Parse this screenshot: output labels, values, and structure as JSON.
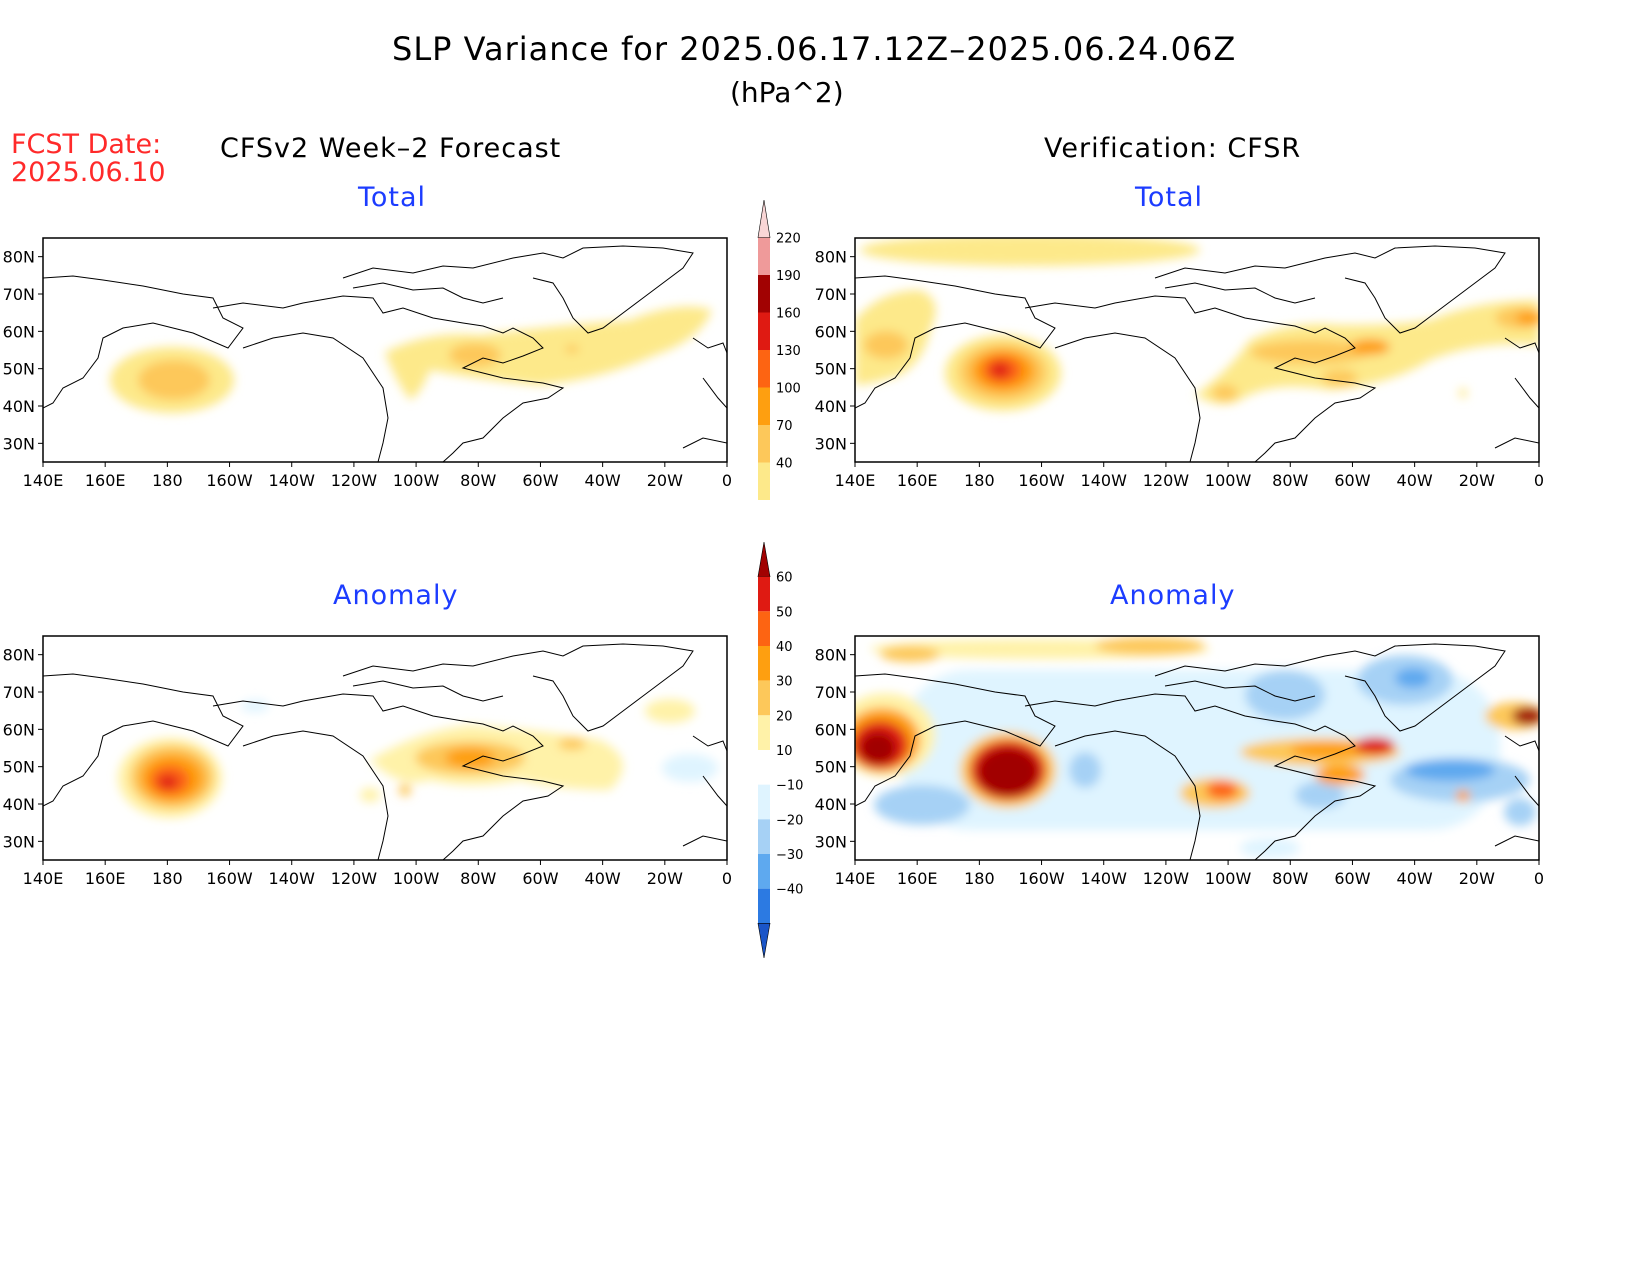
{
  "header": {
    "title": "SLP Variance for 2025.06.17.12Z–2025.06.24.06Z",
    "units": "(hPa^2)",
    "fcst_label": "FCST Date:",
    "fcst_date": "2025.06.10",
    "left_heading": "CFSv2 Week–2 Forecast",
    "right_heading": "Verification: CFSR"
  },
  "panels": [
    {
      "id": "forecast-total",
      "title": "Total"
    },
    {
      "id": "verification-total",
      "title": "Total"
    },
    {
      "id": "forecast-anomaly",
      "title": "Anomaly"
    },
    {
      "id": "verification-anomaly",
      "title": "Anomaly"
    }
  ],
  "axes": {
    "lat_labels": [
      "80N",
      "70N",
      "60N",
      "50N",
      "40N",
      "30N"
    ],
    "lat_values": [
      80,
      70,
      60,
      50,
      40,
      30
    ],
    "lon_labels": [
      "140E",
      "160E",
      "180",
      "160W",
      "140W",
      "120W",
      "100W",
      "80W",
      "60W",
      "40W",
      "20W",
      "0"
    ],
    "lon_values": [
      140,
      160,
      180,
      200,
      220,
      240,
      260,
      280,
      300,
      320,
      340,
      360
    ],
    "lon_range": [
      140,
      360
    ],
    "lat_range": [
      25,
      85
    ]
  },
  "colorbar_total": {
    "labels": [
      "40",
      "70",
      "100",
      "130",
      "160",
      "190",
      "220"
    ],
    "colors": [
      "#fde98a",
      "#fdc85a",
      "#fe9f10",
      "#fd6412",
      "#df1a12",
      "#a10202",
      "#ef9a9a",
      "#f9d6d6"
    ]
  },
  "colorbar_anomaly": {
    "labels": [
      "60",
      "50",
      "40",
      "30",
      "20",
      "10",
      "−10",
      "−20",
      "−30",
      "−40"
    ],
    "colors": [
      "#a10202",
      "#df1a12",
      "#fd6412",
      "#fe9f10",
      "#fdc85a",
      "#fff2a8",
      "#ffffff",
      "#dff4ff",
      "#a6d1f5",
      "#5ea9ef",
      "#2c7ae2",
      "#1a55c8"
    ]
  },
  "field_colors": {
    "t1": "#fde98a",
    "t2": "#fdc85a",
    "t3": "#fe9f10",
    "t4": "#fd6412",
    "t5": "#df1a12",
    "t6": "#a10202",
    "n1": "#dff4ff",
    "n2": "#a6d1f5",
    "n3": "#5ea9ef",
    "n4": "#2c7ae2",
    "a1": "#fff2a8"
  }
}
